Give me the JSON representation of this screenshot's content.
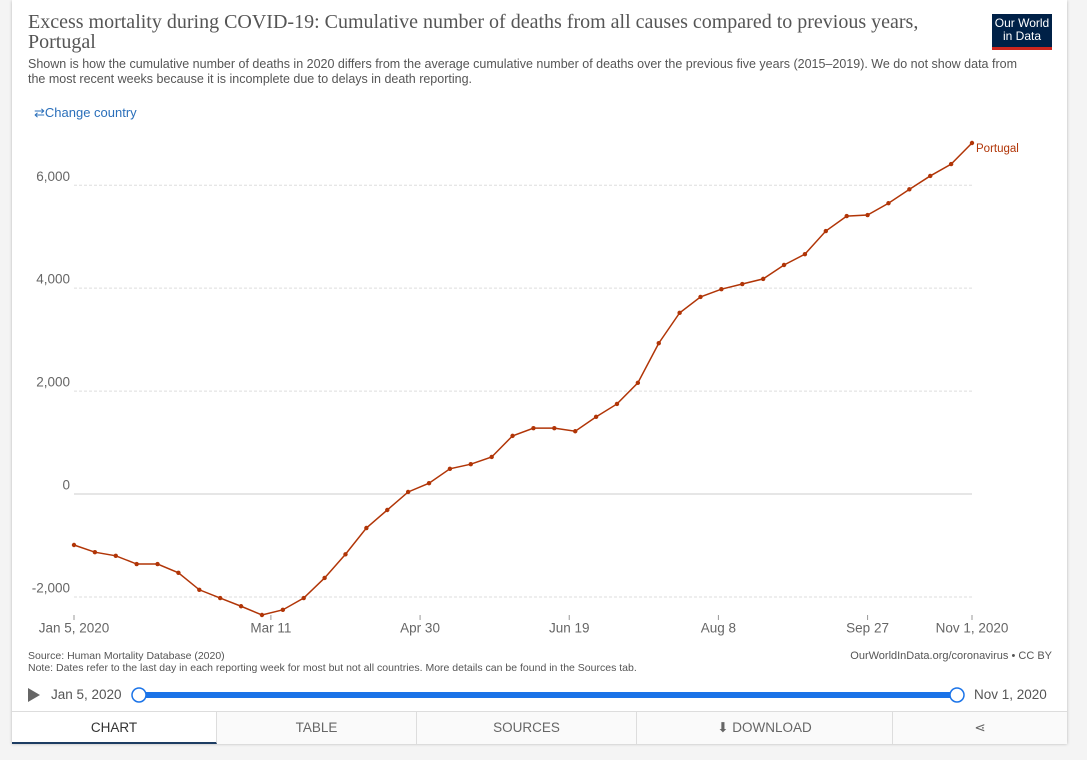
{
  "chart_data": {
    "type": "line",
    "title": "Excess mortality during COVID-19: Cumulative number of deaths from all causes compared to previous years, Portugal",
    "subtitle": "Shown is how the cumulative number of deaths in 2020 differs from the average cumulative number of deaths over the previous five years (2015–2019). We do not show data from the most recent weeks because it is incomplete due to delays in death reporting.",
    "x": [
      "2020-01-05",
      "2020-01-12",
      "2020-01-19",
      "2020-01-26",
      "2020-02-02",
      "2020-02-09",
      "2020-02-16",
      "2020-02-23",
      "2020-03-01",
      "2020-03-08",
      "2020-03-15",
      "2020-03-22",
      "2020-03-29",
      "2020-04-05",
      "2020-04-12",
      "2020-04-19",
      "2020-04-26",
      "2020-05-03",
      "2020-05-10",
      "2020-05-17",
      "2020-05-24",
      "2020-05-31",
      "2020-06-07",
      "2020-06-14",
      "2020-06-21",
      "2020-06-28",
      "2020-07-05",
      "2020-07-12",
      "2020-07-19",
      "2020-07-26",
      "2020-08-02",
      "2020-08-09",
      "2020-08-16",
      "2020-08-23",
      "2020-08-30",
      "2020-09-06",
      "2020-09-13",
      "2020-09-20",
      "2020-09-27",
      "2020-10-04",
      "2020-10-11",
      "2020-10-18",
      "2020-10-25",
      "2020-11-01"
    ],
    "series": [
      {
        "name": "Portugal",
        "color": "#b13507",
        "values": [
          -990,
          -1130,
          -1200,
          -1360,
          -1360,
          -1530,
          -1860,
          -2020,
          -2180,
          -2350,
          -2250,
          -2020,
          -1630,
          -1170,
          -660,
          -310,
          40,
          210,
          490,
          580,
          720,
          1130,
          1280,
          1280,
          1220,
          1500,
          1750,
          2160,
          2930,
          3520,
          3830,
          3980,
          4080,
          4180,
          4450,
          4660,
          5110,
          5400,
          5420,
          5650,
          5920,
          6180,
          6410,
          6820
        ]
      }
    ],
    "xlim": [
      "2020-01-05",
      "2020-11-01"
    ],
    "xticks": [
      {
        "value": "2020-01-05",
        "label": "Jan 5, 2020"
      },
      {
        "value": "2020-03-11",
        "label": "Mar 11"
      },
      {
        "value": "2020-04-30",
        "label": "Apr 30"
      },
      {
        "value": "2020-06-19",
        "label": "Jun 19"
      },
      {
        "value": "2020-08-08",
        "label": "Aug 8"
      },
      {
        "value": "2020-09-27",
        "label": "Sep 27"
      },
      {
        "value": "2020-11-01",
        "label": "Nov 1, 2020"
      }
    ],
    "ylim": [
      -2350,
      6820
    ],
    "yticks": [
      {
        "value": -2000,
        "label": "-2,000"
      },
      0,
      {
        "value": 2000,
        "label": "2,000"
      },
      {
        "value": 4000,
        "label": "4,000"
      },
      {
        "value": 6000,
        "label": "6,000"
      }
    ],
    "grid": true
  },
  "ui": {
    "change_country": "Change country",
    "logo": [
      "Our World",
      "in Data"
    ],
    "source": "Source: Human Mortality Database (2020)",
    "note": "Note: Dates refer to the last day in each reporting week for most but not all countries. More details can be found in the Sources tab.",
    "url": "OurWorldInData.org/coronavirus • CC BY",
    "timeline": {
      "start": "Jan 5, 2020",
      "end": "Nov 1, 2020"
    },
    "tabs": [
      "CHART",
      "TABLE",
      "SOURCES",
      "DOWNLOAD"
    ]
  }
}
